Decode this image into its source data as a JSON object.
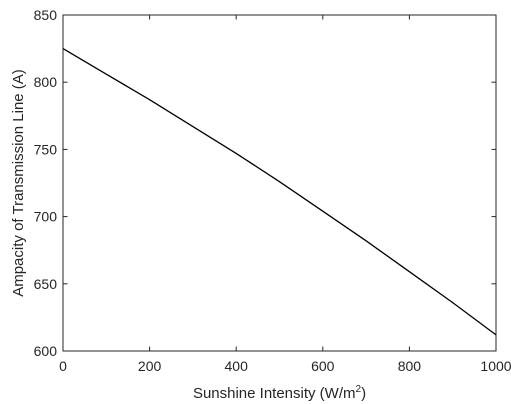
{
  "chart_data": {
    "type": "line",
    "title": "",
    "xlabel": "Sunshine Intensity (W/m",
    "xlabel_sup": "2",
    "xlabel_suffix": ")",
    "ylabel": "Ampacity of Transmission Line (A)",
    "xlim": [
      0,
      1000
    ],
    "ylim": [
      600,
      850
    ],
    "xticks": [
      0,
      200,
      400,
      600,
      800,
      1000
    ],
    "yticks": [
      600,
      650,
      700,
      750,
      800,
      850
    ],
    "grid": false,
    "series": [
      {
        "x": [
          0,
          100,
          200,
          300,
          400,
          500,
          600,
          700,
          800,
          900,
          1000
        ],
        "y": [
          825,
          806,
          787,
          767,
          747,
          726,
          704,
          682,
          659,
          636,
          612
        ]
      }
    ],
    "line_color": "#000000"
  }
}
